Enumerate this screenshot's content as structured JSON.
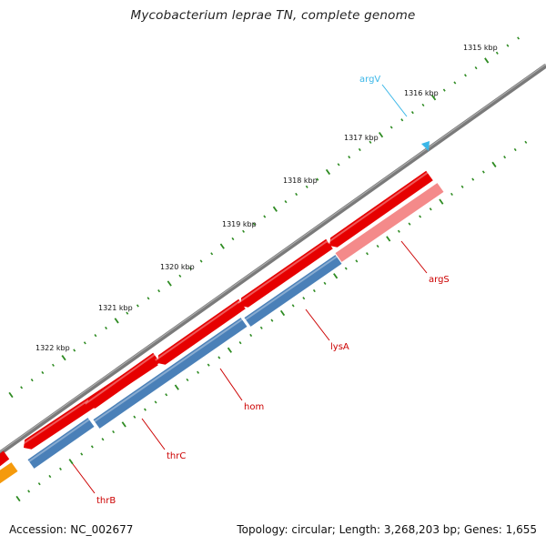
{
  "title": "Mycobacterium leprae TN, complete genome",
  "footer": {
    "accession": "Accession: NC_002677",
    "topology": "Topology: circular; Length: 3,268,203 bp; Genes: 1,655"
  },
  "ruler": [
    "1315 kbp",
    "1316 kbp",
    "1317 kbp",
    "1318 kbp",
    "1319 kbp",
    "1320 kbp",
    "1321 kbp",
    "1322 kbp"
  ],
  "genes": [
    {
      "name": "argV",
      "color": "#3bb7e8"
    },
    {
      "name": "argS",
      "color": "#cc0000"
    },
    {
      "name": "lysA",
      "color": "#cc0000"
    },
    {
      "name": "hom",
      "color": "#cc0000"
    },
    {
      "name": "thrC",
      "color": "#cc0000"
    },
    {
      "name": "thrB",
      "color": "#cc0000"
    }
  ],
  "colors": {
    "backbone": "#7a7a7a",
    "gene_red": "#e60000",
    "gene_red_light": "#f48a8a",
    "cds_blue": "#4a80b8",
    "gene_orange": "#f59a0c",
    "tick_green": "#2e8b22",
    "label_red": "#cc0000",
    "trna_cyan": "#3bb7e8"
  }
}
